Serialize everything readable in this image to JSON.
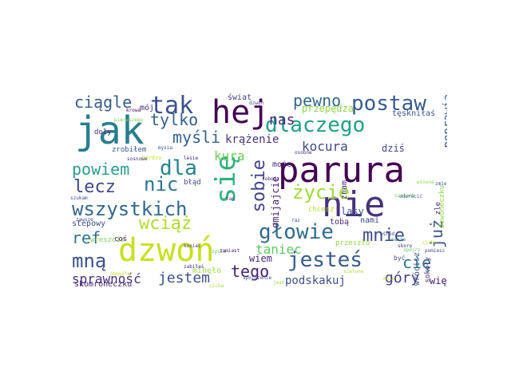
{
  "palette": {
    "dark_purple": "#440154",
    "indigo": "#46327e",
    "blue": "#365c8d",
    "teal_blue": "#277f8e",
    "teal": "#1fa187",
    "green": "#4ac16d",
    "lime": "#a0da39",
    "yellow": "#dde318"
  },
  "words": [
    {
      "t": "parura",
      "c": "#440154"
    },
    {
      "t": "nie",
      "c": "#46327e"
    },
    {
      "t": "jak",
      "c": "#277f8e"
    },
    {
      "t": "dzwoń",
      "c": "#c8e020"
    },
    {
      "t": "hej",
      "c": "#440154"
    },
    {
      "t": "się",
      "c": "#2db27d"
    },
    {
      "t": "dlaczego",
      "c": "#1fa187"
    },
    {
      "t": "jesteś",
      "c": "#365c8d"
    },
    {
      "t": "głowie",
      "c": "#2f6c8e"
    },
    {
      "t": "postaw",
      "c": "#365c8d"
    },
    {
      "t": "wszystkich",
      "c": "#31688e"
    },
    {
      "t": "życie",
      "c": "#a0da39"
    },
    {
      "t": "dla",
      "c": "#26828e"
    },
    {
      "t": "mną",
      "c": "#3b528b"
    },
    {
      "t": "sobie",
      "c": "#404387"
    },
    {
      "t": "tak",
      "c": "#3b528b"
    },
    {
      "t": "mnie",
      "c": "#3e4a89"
    },
    {
      "t": "ciągle",
      "c": "#365c8d"
    },
    {
      "t": "powiem",
      "c": "#2a9d8f"
    },
    {
      "t": "nic",
      "c": "#2c738e"
    },
    {
      "t": "lecz",
      "c": "#3e4989"
    },
    {
      "t": "wciąż",
      "c": "#addc30"
    },
    {
      "t": "tylko",
      "c": "#355f8d"
    },
    {
      "t": "myśli",
      "c": "#33638d"
    },
    {
      "t": "pewno",
      "c": "#31688e"
    },
    {
      "t": "już",
      "c": "#3a548c"
    },
    {
      "t": "ref",
      "c": "#2c728e"
    },
    {
      "t": "nas",
      "c": "#472878"
    },
    {
      "t": "cię",
      "c": "#2a788e"
    },
    {
      "t": "tego",
      "c": "#482475"
    },
    {
      "t": "góry",
      "c": "#443a83"
    },
    {
      "t": "jestem",
      "c": "#3b528b"
    },
    {
      "t": "sprawność",
      "c": "#46307e"
    },
    {
      "t": "taniec",
      "c": "#5ec962"
    },
    {
      "t": "podskakuj",
      "c": "#3d4e8a"
    },
    {
      "t": "kocura",
      "c": "#3f4788"
    },
    {
      "t": "kura",
      "c": "#6ccd5a"
    },
    {
      "t": "krążenie",
      "c": "#46337e"
    },
    {
      "t": "poprawia",
      "c": "#38598c"
    },
    {
      "t": "przepędza",
      "c": "#8fd744"
    },
    {
      "t": "dziś",
      "c": "#414487"
    },
    {
      "t": "tęskniłaś",
      "c": "#3b528b"
    },
    {
      "t": "omijajcie",
      "c": "#481f70"
    },
    {
      "t": "może",
      "c": "#472d7b"
    },
    {
      "t": "wiem",
      "c": "#482878"
    },
    {
      "t": "minęło",
      "c": "#9fda3a"
    },
    {
      "t": "więc",
      "c": "#481769"
    },
    {
      "t": "skomroneczku",
      "c": "#482173"
    },
    {
      "t": "stepowy",
      "c": "#3e4c8a"
    },
    {
      "t": "wreszcie",
      "c": "#7ad151"
    },
    {
      "t": "znam",
      "c": "#46327e"
    },
    {
      "t": "lasy",
      "c": "#3b528b"
    },
    {
      "t": "tobą",
      "c": "#482878"
    },
    {
      "t": "nami",
      "c": "#3e4a89"
    },
    {
      "t": "przeszło",
      "c": "#95d840"
    },
    {
      "t": "mój",
      "c": "#472c7a"
    },
    {
      "t": "świat",
      "c": "#433e85"
    },
    {
      "t": "doły",
      "c": "#482677"
    },
    {
      "t": "zrobiłem",
      "c": "#38588c"
    },
    {
      "t": "błąd",
      "c": "#3e4a89"
    },
    {
      "t": "coś",
      "c": "#471365"
    },
    {
      "t": "wrócisz",
      "c": "#3b528b"
    },
    {
      "t": "sokoły",
      "c": "#472f7d"
    },
    {
      "t": "dzwoneczku",
      "c": "#8ed645"
    },
    {
      "t": "zle",
      "c": "#481f70"
    },
    {
      "t": "być",
      "c": "#3e4a89"
    },
    {
      "t": "zycia",
      "c": "#55c667"
    },
    {
      "t": "chcesz",
      "c": "#b5de2b"
    },
    {
      "t": "bardzo",
      "c": "#c2df23"
    },
    {
      "t": "mysia",
      "c": "#3b528b"
    },
    {
      "t": "cicho",
      "c": "#bddf26"
    },
    {
      "t": "szalona",
      "c": "#6ece58"
    },
    {
      "t": "pomiesz",
      "c": "#3e4a89"
    },
    {
      "t": "krowa",
      "c": "#440154"
    },
    {
      "t": "pierwszego",
      "c": "#7ad151"
    },
    {
      "t": "lesie",
      "c": "#482173"
    },
    {
      "t": "spojrzenie",
      "c": "#3b528b"
    },
    {
      "t": "cicha",
      "c": "#9fda3a"
    },
    {
      "t": "jest",
      "c": "#95d840"
    },
    {
      "t": "sosnowe",
      "c": "#443983"
    },
    {
      "t": "szalone",
      "c": "#addc30"
    },
    {
      "t": "szukam",
      "c": "#3e4a89"
    },
    {
      "t": "sobota",
      "c": "#481c6e"
    },
    {
      "t": "odwrócić",
      "c": "#3b528b"
    },
    {
      "t": "nasze",
      "c": "#2a788e"
    },
    {
      "t": "skoro",
      "c": "#472d7b"
    },
    {
      "t": "zamiast",
      "c": "#48186a"
    },
    {
      "t": "koniec",
      "c": "#453882"
    },
    {
      "t": "wiosna",
      "c": "#8fd744"
    },
    {
      "t": "zmierzasz",
      "c": "#3b528b"
    },
    {
      "t": "obmyślę",
      "c": "#c8e020"
    },
    {
      "t": "raz",
      "c": "#3e4a89"
    },
    {
      "t": "osobne",
      "c": "#46307e"
    },
    {
      "t": "zawsze",
      "c": "#3b528b"
    },
    {
      "t": "zabiłaś",
      "c": "#482878"
    },
    {
      "t": "wśród",
      "c": "#3e4a89"
    },
    {
      "t": "spójrz",
      "c": "#5ec962"
    },
    {
      "t": "tam",
      "c": "#433e85"
    },
    {
      "t": "mnie",
      "c": "#b8de29"
    },
    {
      "t": "dzwon",
      "c": "#3b528b"
    }
  ]
}
